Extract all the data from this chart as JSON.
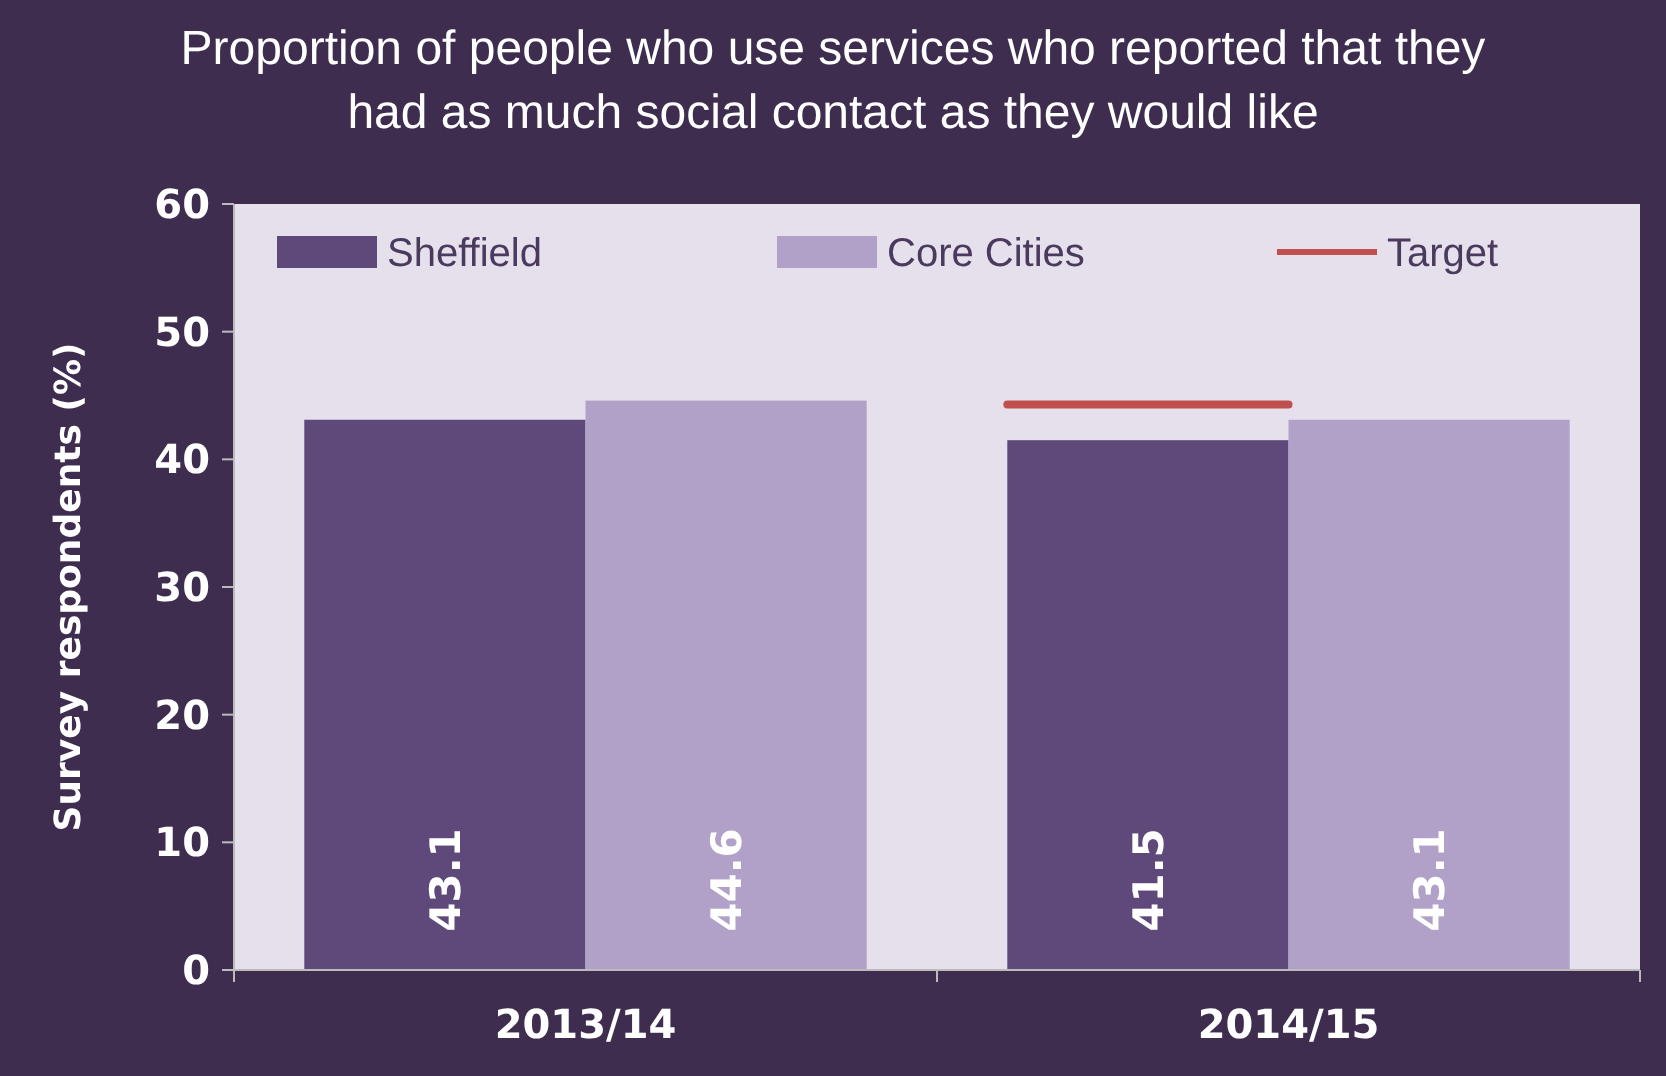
{
  "chart_data": {
    "type": "bar",
    "title": "Proportion of people who use services who reported that they had as much social contact as they would like",
    "ylabel": "Survey respondents (%)",
    "categories": [
      "2013/14",
      "2014/15"
    ],
    "series": [
      {
        "name": "Sheffield",
        "color": "#5f497a",
        "values": [
          43.1,
          41.5
        ],
        "value_labels": [
          "43.1",
          "41.5"
        ]
      },
      {
        "name": "Core Cities",
        "color": "#b1a0c7",
        "values": [
          44.6,
          43.1
        ],
        "value_labels": [
          "44.6",
          "43.1"
        ]
      }
    ],
    "ref_lines": [
      {
        "axis": "y",
        "value": 44.3,
        "label": "Target",
        "color": "#c0504d"
      }
    ],
    "ylim": [
      0,
      60
    ],
    "yticks": [
      0,
      10,
      20,
      30,
      40,
      50,
      60
    ],
    "grid": false,
    "legend": "top"
  }
}
